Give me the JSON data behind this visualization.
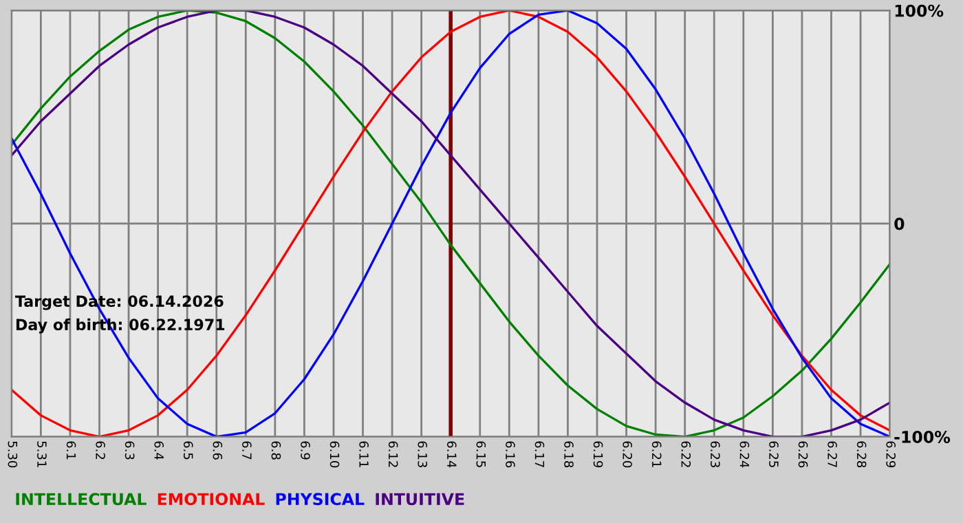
{
  "chart_data": {
    "type": "line",
    "categories": [
      "5.30",
      "5.31",
      "6.1",
      "6.2",
      "6.3",
      "6.4",
      "6.5",
      "6.6",
      "6.7",
      "6.8",
      "6.9",
      "6.10",
      "6.11",
      "6.12",
      "6.13",
      "6.14",
      "6.15",
      "6.16",
      "6.17",
      "6.18",
      "6.19",
      "6.20",
      "6.21",
      "6.22",
      "6.23",
      "6.24",
      "6.25",
      "6.26",
      "6.27",
      "6.28",
      "6.29"
    ],
    "series": [
      {
        "name": "INTELLECTUAL",
        "color": "#008000",
        "values": [
          37,
          54,
          69,
          81,
          91,
          97,
          100,
          99,
          95,
          87,
          76,
          62,
          46,
          28,
          10,
          -10,
          -28,
          -46,
          -62,
          -76,
          -87,
          -95,
          -99,
          -100,
          -97,
          -91,
          -81,
          -69,
          -54,
          -37,
          -19
        ]
      },
      {
        "name": "EMOTIONAL",
        "color": "#ff0000",
        "values": [
          -78,
          -90,
          -97,
          -100,
          -97,
          -90,
          -78,
          -62,
          -43,
          -22,
          0,
          22,
          43,
          62,
          78,
          90,
          97,
          100,
          97,
          90,
          78,
          62,
          43,
          22,
          0,
          -22,
          -43,
          -62,
          -78,
          -90,
          -97
        ]
      },
      {
        "name": "PHYSICAL",
        "color": "#0000ff",
        "values": [
          40,
          14,
          -14,
          -40,
          -63,
          -82,
          -94,
          -100,
          -98,
          -89,
          -73,
          -52,
          -27,
          0,
          27,
          52,
          73,
          89,
          98,
          100,
          94,
          82,
          63,
          40,
          14,
          -14,
          -40,
          -63,
          -82,
          -94,
          -100
        ]
      },
      {
        "name": "INTUITIVE",
        "color": "#4b0082",
        "values": [
          32,
          48,
          61,
          74,
          84,
          92,
          97,
          100,
          100,
          97,
          92,
          84,
          74,
          61,
          48,
          32,
          16,
          0,
          -16,
          -32,
          -48,
          -61,
          -74,
          -84,
          -92,
          -97,
          -100,
          -100,
          -97,
          -92,
          -84
        ]
      }
    ],
    "ylim": [
      -100,
      100
    ],
    "yticks": [
      {
        "value": 100,
        "label": "100%"
      },
      0,
      {
        "value": -100,
        "label": "-100%"
      }
    ],
    "grid": true,
    "legend": "bottom",
    "ref_lines": [
      {
        "axis": "x",
        "value": "6.14",
        "color": "#800000"
      }
    ],
    "annotations": [
      "Target Date: 06.14.2026",
      "Day of birth: 06.22.1971"
    ]
  }
}
